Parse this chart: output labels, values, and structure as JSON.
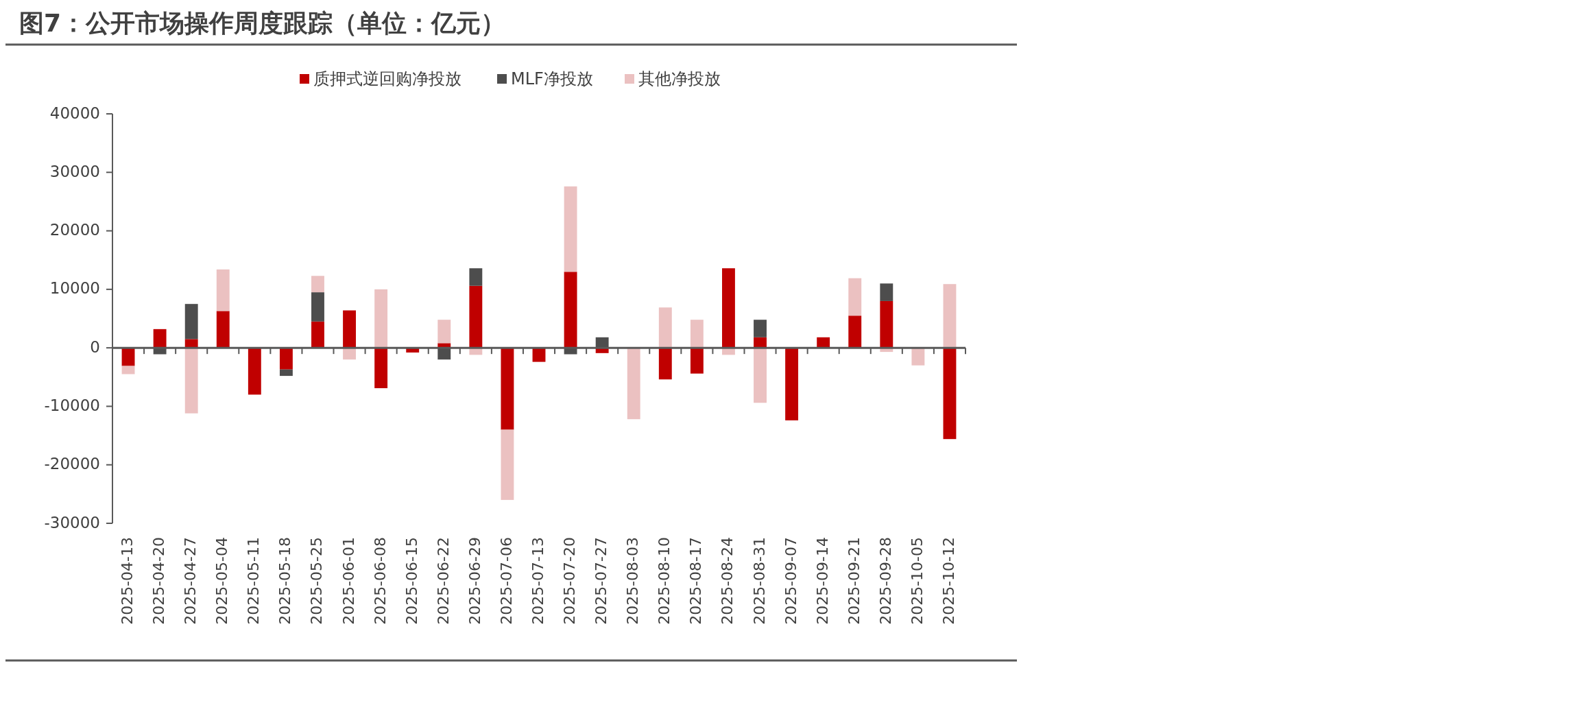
{
  "chart_data": {
    "type": "bar",
    "title": "图7：公开市场操作周度跟踪（单位：亿元）",
    "stacked": true,
    "legend": "top",
    "categories": [
      "2025-04-13",
      "2025-04-20",
      "2025-04-27",
      "2025-05-04",
      "2025-05-11",
      "2025-05-18",
      "2025-05-25",
      "2025-06-01",
      "2025-06-08",
      "2025-06-15",
      "2025-06-22",
      "2025-06-29",
      "2025-07-06",
      "2025-07-13",
      "2025-07-20",
      "2025-07-27",
      "2025-08-03",
      "2025-08-10",
      "2025-08-17",
      "2025-08-24",
      "2025-08-31",
      "2025-09-07",
      "2025-09-14",
      "2025-09-21",
      "2025-09-28",
      "2025-10-05",
      "2025-10-12"
    ],
    "series": [
      {
        "name": "质押式逆回购净投放",
        "color": "#c00000",
        "values": [
          -3100,
          3200,
          1500,
          6300,
          -8000,
          -3700,
          4500,
          6400,
          -6900,
          -800,
          800,
          10600,
          -14000,
          -2400,
          13000,
          -900,
          0,
          -5400,
          -4400,
          13600,
          1800,
          -12400,
          1800,
          5500,
          8000,
          0,
          -15600
        ]
      },
      {
        "name": "MLF净投放",
        "color": "#4d4d4d",
        "values": [
          0,
          -1100,
          6000,
          0,
          0,
          -1100,
          5000,
          0,
          0,
          0,
          -2000,
          3000,
          0,
          0,
          -1100,
          1800,
          0,
          0,
          0,
          0,
          3000,
          0,
          0,
          0,
          3000,
          0,
          0
        ]
      },
      {
        "name": "其他净投放",
        "color": "#ebc1c1",
        "values": [
          -1400,
          0,
          -11200,
          7100,
          0,
          0,
          2800,
          -2000,
          10000,
          0,
          4000,
          -1200,
          -12000,
          0,
          14600,
          0,
          -12200,
          6900,
          4800,
          -1200,
          -9400,
          0,
          0,
          6400,
          -700,
          -3000,
          10900
        ]
      }
    ],
    "ylim": [
      -30000,
      40000
    ],
    "yticks": [
      -30000,
      -20000,
      -10000,
      0,
      10000,
      20000,
      30000,
      40000
    ]
  }
}
